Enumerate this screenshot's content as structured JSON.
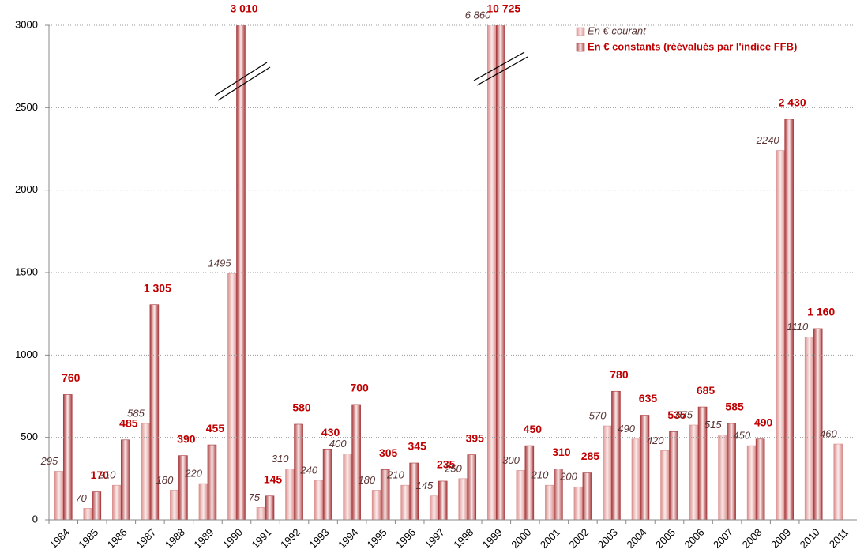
{
  "chart_data": {
    "type": "bar",
    "categories": [
      "1984",
      "1985",
      "1986",
      "1987",
      "1988",
      "1989",
      "1990",
      "1991",
      "1992",
      "1993",
      "1994",
      "1995",
      "1996",
      "1997",
      "1998",
      "1999",
      "2000",
      "2001",
      "2002",
      "2003",
      "2004",
      "2005",
      "2006",
      "2007",
      "2008",
      "2009",
      "2010",
      "2011"
    ],
    "series": [
      {
        "name": "En € courant",
        "color": "#d98f8d",
        "values": [
          295,
          70,
          210,
          585,
          180,
          220,
          1495,
          75,
          310,
          240,
          400,
          180,
          210,
          145,
          250,
          6860,
          300,
          210,
          200,
          570,
          490,
          420,
          575,
          515,
          450,
          2240,
          1110,
          460
        ],
        "value_labels": [
          "295",
          "70",
          "210",
          "585",
          "180",
          "220",
          "1495",
          "75",
          "310",
          "240",
          "400",
          "180",
          "210",
          "145",
          "250",
          "6 860",
          "300",
          "210",
          "200",
          "570",
          "490",
          "420",
          "575",
          "515",
          "450",
          "2240",
          "1110",
          "460"
        ]
      },
      {
        "name": "En € constants (réévalués par l'indice FFB)",
        "color": "#a8393c",
        "values": [
          760,
          170,
          485,
          1305,
          390,
          455,
          3010,
          145,
          580,
          430,
          700,
          305,
          345,
          235,
          395,
          10725,
          450,
          310,
          285,
          780,
          635,
          535,
          685,
          585,
          490,
          2430,
          1160,
          null
        ],
        "value_labels": [
          "760",
          "170",
          "485",
          "1 305",
          "390",
          "455",
          "3 010",
          "145",
          "580",
          "430",
          "700",
          "305",
          "345",
          "235",
          "395",
          "10 725",
          "450",
          "310",
          "285",
          "780",
          "635",
          "535",
          "685",
          "585",
          "490",
          "2 430",
          "1 160",
          null
        ]
      }
    ],
    "ylim": [
      0,
      3000
    ],
    "yticks": [
      0,
      500,
      1000,
      1500,
      2000,
      2500,
      3000
    ],
    "grid": true,
    "legend": "top-right"
  }
}
